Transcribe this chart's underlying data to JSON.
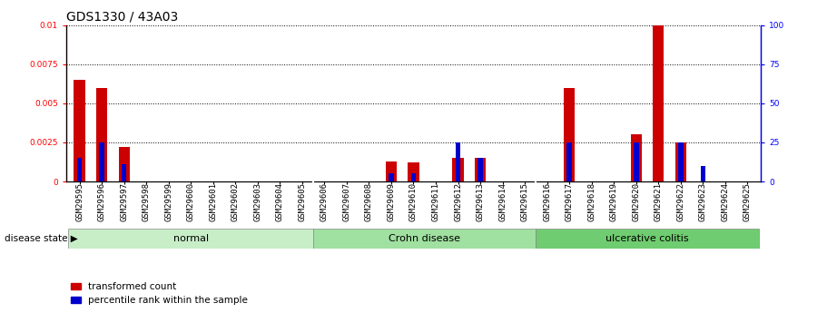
{
  "title": "GDS1330 / 43A03",
  "samples": [
    "GSM29595",
    "GSM29596",
    "GSM29597",
    "GSM29598",
    "GSM29599",
    "GSM29600",
    "GSM29601",
    "GSM29602",
    "GSM29603",
    "GSM29604",
    "GSM29605",
    "GSM29606",
    "GSM29607",
    "GSM29608",
    "GSM29609",
    "GSM29610",
    "GSM29611",
    "GSM29612",
    "GSM29613",
    "GSM29614",
    "GSM29615",
    "GSM29616",
    "GSM29617",
    "GSM29618",
    "GSM29619",
    "GSM29620",
    "GSM29621",
    "GSM29622",
    "GSM29623",
    "GSM29624",
    "GSM29625"
  ],
  "red_values": [
    0.0065,
    0.006,
    0.0022,
    0.0,
    0.0,
    0.0,
    0.0,
    0.0,
    0.0,
    0.0,
    0.0,
    0.0,
    0.0,
    0.0,
    0.0013,
    0.0012,
    0.0,
    0.0015,
    0.0015,
    0.0,
    0.0,
    0.0,
    0.006,
    0.0,
    0.0,
    0.003,
    0.01,
    0.0025,
    0.0,
    0.0,
    0.0
  ],
  "blue_percentile": [
    15,
    25,
    11,
    0,
    0,
    0,
    0,
    0,
    0,
    0,
    0,
    0,
    0,
    0,
    5,
    5,
    0,
    25,
    15,
    0,
    0,
    0,
    25,
    0,
    0,
    25,
    0,
    25,
    10,
    0,
    0
  ],
  "groups": [
    {
      "label": "normal",
      "start": 0,
      "end": 10,
      "color": "#c8eec8"
    },
    {
      "label": "Crohn disease",
      "start": 11,
      "end": 20,
      "color": "#a0e0a0"
    },
    {
      "label": "ulcerative colitis",
      "start": 21,
      "end": 30,
      "color": "#70cc70"
    }
  ],
  "ylim_left": [
    0,
    0.01
  ],
  "ylim_right": [
    0,
    100
  ],
  "yticks_left": [
    0,
    0.0025,
    0.005,
    0.0075,
    0.01
  ],
  "yticks_right": [
    0,
    25,
    50,
    75,
    100
  ],
  "red_color": "#cc0000",
  "blue_color": "#0000cc",
  "title_fontsize": 10,
  "tick_fontsize": 6.5,
  "label_fontsize": 8
}
